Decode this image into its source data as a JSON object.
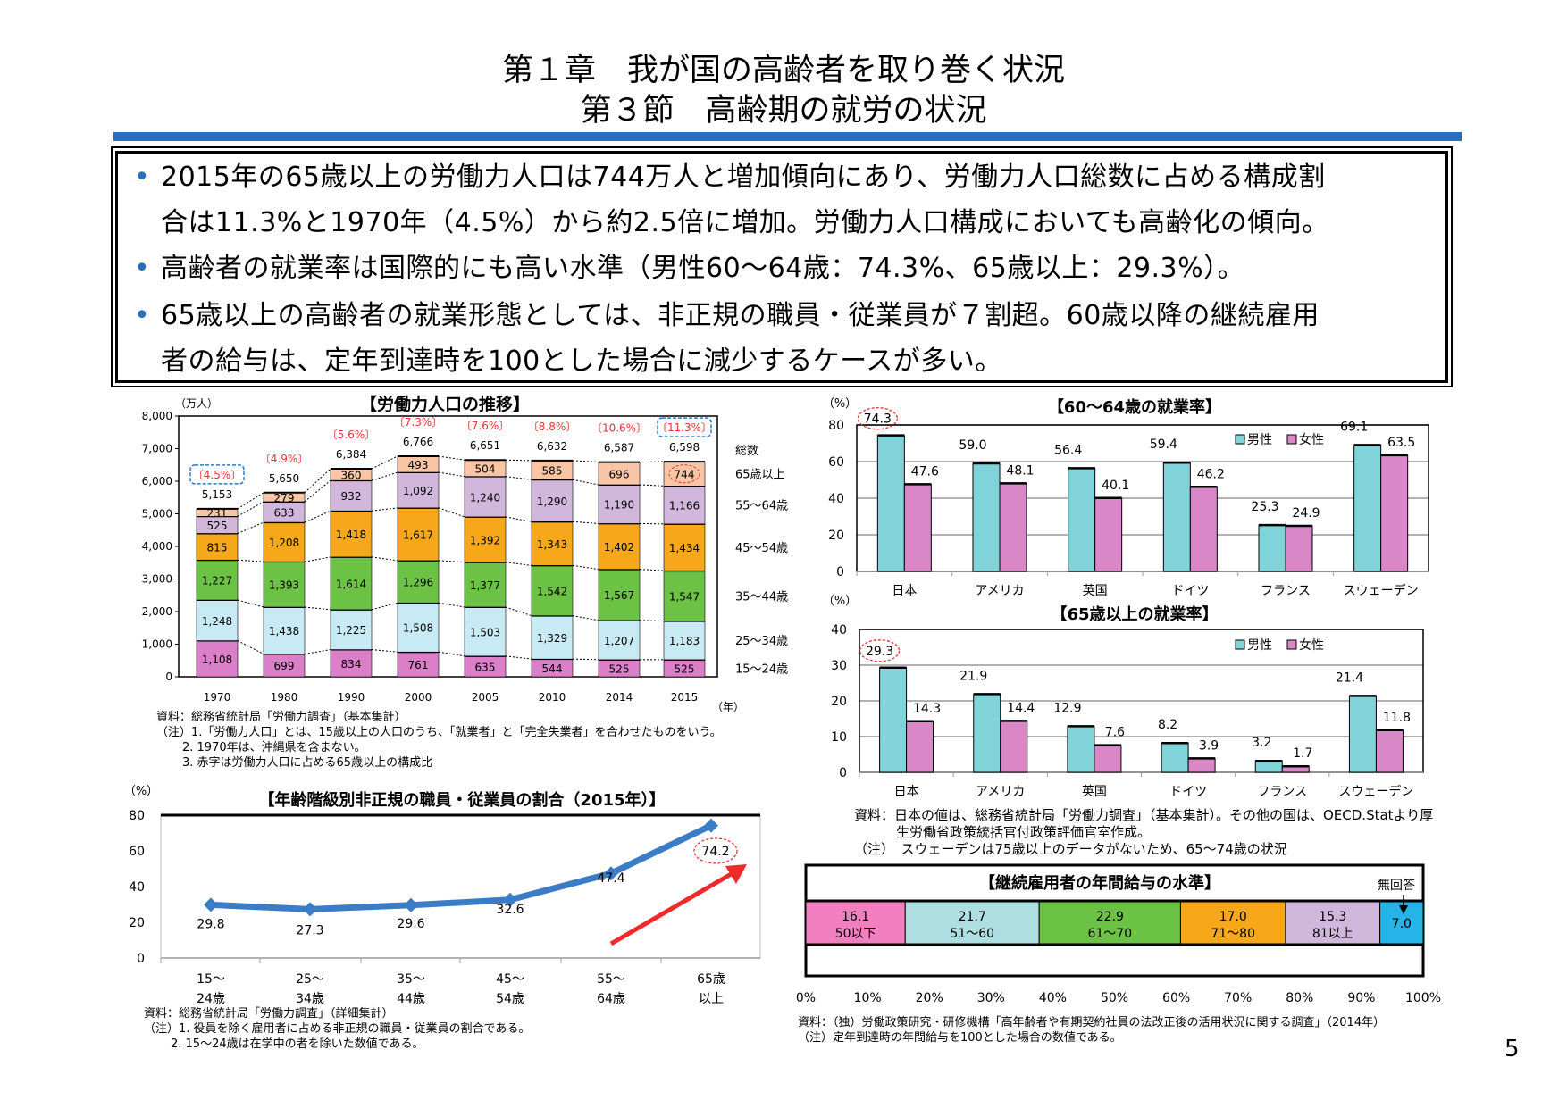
{
  "header": {
    "chapter": "第１章　我が国の高齢者を取り巻く状況",
    "section": "第３節　高齢期の就労の状況"
  },
  "summary": {
    "bullets": [
      {
        "line1": "2015年の65歳以上の労働力人口は744万人と増加傾向にあり、労働力人口総数に占める構成割",
        "line2": "合は11.3%と1970年（4.5%）から約2.5倍に増加。労働力人口構成においても高齢化の傾向。"
      },
      {
        "line1": "高齢者の就業率は国際的にも高い水準（男性60～64歳：74.3%、65歳以上：29.3%）。"
      },
      {
        "line1": "65歳以上の高齢者の就業形態としては、非正規の職員・従業員が７割超。60歳以降の継続雇用",
        "line2": "者の給与は、定年到達時を100とした場合に減少するケースが多い。"
      }
    ],
    "bullet_char": "•"
  },
  "chart_data": [
    {
      "type": "bar",
      "stacked": true,
      "title": "【労働力人口の推移】",
      "ylabel": "（万人）",
      "xlabel": "（年）",
      "ylim": [
        0,
        8000
      ],
      "yticks": [
        "0",
        "1,000",
        "2,000",
        "3,000",
        "4,000",
        "5,000",
        "6,000",
        "7,000",
        "8,000"
      ],
      "categories": [
        "1970",
        "1980",
        "1990",
        "2000",
        "2005",
        "2010",
        "2014",
        "2015"
      ],
      "series": [
        {
          "name": "15～24歳",
          "color": "#da7fc8",
          "values": [
            1108,
            699,
            834,
            761,
            635,
            544,
            525,
            525
          ],
          "labels": [
            "1,108",
            "699",
            "834",
            "761",
            "635",
            "544",
            "525",
            "525"
          ]
        },
        {
          "name": "25～34歳",
          "color": "#c8eaf5",
          "values": [
            1248,
            1438,
            1225,
            1508,
            1503,
            1329,
            1207,
            1183
          ],
          "labels": [
            "1,248",
            "1,438",
            "1,225",
            "1,508",
            "1,503",
            "1,329",
            "1,207",
            "1,183"
          ]
        },
        {
          "name": "35～44歳",
          "color": "#6cc244",
          "values": [
            1227,
            1393,
            1614,
            1296,
            1377,
            1542,
            1567,
            1547
          ],
          "labels": [
            "1,227",
            "1,393",
            "1,614",
            "1,296",
            "1,377",
            "1,542",
            "1,567",
            "1,547"
          ]
        },
        {
          "name": "45～54歳",
          "color": "#f6a81a",
          "values": [
            815,
            1208,
            1418,
            1617,
            1392,
            1343,
            1402,
            1434
          ],
          "labels": [
            "815",
            "1,208",
            "1,418",
            "1,617",
            "1,392",
            "1,343",
            "1,402",
            "1,434"
          ]
        },
        {
          "name": "55～64歳",
          "color": "#d1b7dc",
          "values": [
            525,
            633,
            932,
            1092,
            1240,
            1290,
            1190,
            1166
          ],
          "labels": [
            "525",
            "633",
            "932",
            "1,092",
            "1,240",
            "1,290",
            "1,190",
            "1,166"
          ]
        },
        {
          "name": "65歳以上",
          "color": "#f8c6a6",
          "values": [
            231,
            279,
            360,
            493,
            504,
            585,
            696,
            744
          ],
          "labels": [
            "231",
            "279",
            "360",
            "493",
            "504",
            "585",
            "696",
            "744"
          ]
        }
      ],
      "total_name": "総数",
      "totals": [
        "5,153",
        "5,650",
        "6,384",
        "6,766",
        "6,651",
        "6,632",
        "6,587",
        "6,598"
      ],
      "elderly_share": [
        "〔4.5%〕",
        "〔4.9%〕",
        "〔5.6%〕",
        "〔7.3%〕",
        "〔7.6%〕",
        "〔8.8%〕",
        "〔10.6%〕",
        "〔11.3%〕"
      ],
      "share_color": "#e8332f",
      "highlight_color": "#2a7bd0",
      "notes": [
        "資料：総務省統計局「労働力調査」（基本集計）",
        "（注）1.「労働力人口」とは、15歳以上の人口のうち、「就業者」と「完全失業者」を合わせたものをいう。",
        "2. 1970年は、沖縄県を含まない。",
        "3. 赤字は労働力人口に占める65歳以上の構成比"
      ]
    },
    {
      "type": "bar",
      "title": "【60～64歳の就業率】",
      "ylabel": "（%）",
      "ylim": [
        0,
        80
      ],
      "yticks": [
        "0",
        "20",
        "40",
        "60",
        "80"
      ],
      "grid": true,
      "legend": "top-right",
      "categories": [
        "日本",
        "アメリカ",
        "英国",
        "ドイツ",
        "フランス",
        "スウェーデン"
      ],
      "series": [
        {
          "name": "男性",
          "color": "#7fd3d9",
          "values": [
            74.3,
            59.0,
            56.4,
            59.4,
            25.3,
            69.1
          ],
          "labels": [
            "74.3",
            "59.0",
            "56.4",
            "59.4",
            "25.3",
            "69.1"
          ]
        },
        {
          "name": "女性",
          "color": "#da87c8",
          "values": [
            47.6,
            48.1,
            40.1,
            46.2,
            24.9,
            63.5
          ],
          "labels": [
            "47.6",
            "48.1",
            "40.1",
            "46.2",
            "24.9",
            "63.5"
          ]
        }
      ]
    },
    {
      "type": "bar",
      "title": "【65歳以上の就業率】",
      "ylabel": "（%）",
      "ylim": [
        0,
        40
      ],
      "yticks": [
        "0",
        "10",
        "20",
        "30",
        "40"
      ],
      "grid": true,
      "legend": "top-right",
      "categories": [
        "日本",
        "アメリカ",
        "英国",
        "ドイツ",
        "フランス",
        "スウェーデン"
      ],
      "series": [
        {
          "name": "男性",
          "color": "#7fd3d9",
          "values": [
            29.3,
            21.9,
            12.9,
            8.2,
            3.2,
            21.4
          ],
          "labels": [
            "29.3",
            "21.9",
            "12.9",
            "8.2",
            "3.2",
            "21.4"
          ]
        },
        {
          "name": "女性",
          "color": "#da87c8",
          "values": [
            14.3,
            14.4,
            7.6,
            3.9,
            1.7,
            11.8
          ],
          "labels": [
            "14.3",
            "14.4",
            "7.6",
            "3.9",
            "1.7",
            "11.8"
          ]
        }
      ],
      "notes": [
        "資料：日本の値は、総務省統計局「労働力調査」（基本集計）。その他の国は、OECD.Statより厚",
        "生労働省政策統括官付政策評価官室作成。",
        "（注）　スウェーデンは75歳以上のデータがないため、65～74歳の状況"
      ]
    },
    {
      "type": "line",
      "title": "【年齢階級別非正規の職員・従業員の割合（2015年）】",
      "ylabel": "（%）",
      "ylim": [
        0,
        80
      ],
      "yticks": [
        "0",
        "20",
        "40",
        "60",
        "80"
      ],
      "categories": [
        [
          "15～",
          "24歳"
        ],
        [
          "25～",
          "34歳"
        ],
        [
          "35～",
          "44歳"
        ],
        [
          "45～",
          "54歳"
        ],
        [
          "55～",
          "64歳"
        ],
        [
          "65歳",
          "以上"
        ]
      ],
      "series": [
        {
          "color": "#3a7cc6",
          "values": [
            29.8,
            27.3,
            29.6,
            32.6,
            47.4,
            74.2
          ],
          "labels": [
            "29.8",
            "27.3",
            "29.6",
            "32.6",
            "47.4",
            "74.2"
          ]
        }
      ],
      "arrow_color": "#ee2a2a",
      "notes": [
        "資料：総務省統計局「労働力調査」（詳細集計）",
        "（注）1. 役員を除く雇用者に占める非正規の職員・従業員の割合である。",
        "2. 15～24歳は在学中の者を除いた数値である。"
      ]
    },
    {
      "type": "bar",
      "stacked": true,
      "orientation": "horizontal",
      "title": "【継続雇用者の年間給与の水準】",
      "xlim": [
        0,
        100
      ],
      "xticks": [
        "0%",
        "10%",
        "20%",
        "30%",
        "40%",
        "50%",
        "60%",
        "70%",
        "80%",
        "90%",
        "100%"
      ],
      "no_answer_label": "無回答",
      "segments": [
        {
          "name": "50以下",
          "value": 16.1,
          "label": "16.1",
          "color": "#f27fc0"
        },
        {
          "name": "51～60",
          "value": 21.7,
          "label": "21.7",
          "color": "#addfe2"
        },
        {
          "name": "61～70",
          "value": 22.9,
          "label": "22.9",
          "color": "#6cc244"
        },
        {
          "name": "71～80",
          "value": 17.0,
          "label": "17.0",
          "color": "#f6a81a"
        },
        {
          "name": "81以上",
          "value": 15.3,
          "label": "15.3",
          "color": "#d1b7dc"
        },
        {
          "name": "",
          "value": 7.0,
          "label": "7.0",
          "color": "#26b3e8"
        }
      ],
      "notes": [
        "資料：（独）労働政策研究・研修機構「高年齢者や有期契約社員の法改正後の活用状況に関する調査」（2014年）",
        "（注）定年到達時の年間給与を100とした場合の数値である。"
      ]
    }
  ],
  "page_number": "5"
}
